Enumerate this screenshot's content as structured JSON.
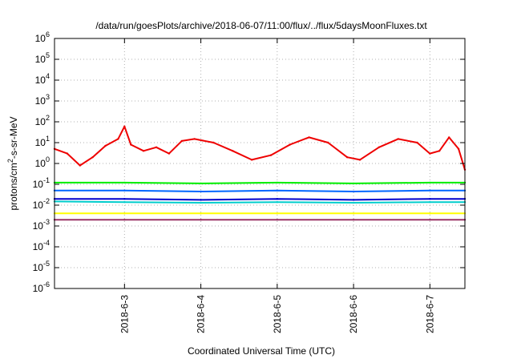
{
  "chart_data": {
    "type": "line",
    "title": "/data/run/goesPlots/archive/2018-06-07/11:00/flux/../flux/5daysMoonFluxes.txt",
    "xlabel": "Coordinated Universal Time (UTC)",
    "ylabel_parts": {
      "base": "protons/cm",
      "sup": "2",
      "rest": "-s-sr-MeV"
    },
    "y_scale": "log",
    "ylim": [
      1e-06,
      1000000.0
    ],
    "y_ticks": [
      {
        "base": "10",
        "exp": "6",
        "value": 1000000.0
      },
      {
        "base": "10",
        "exp": "5",
        "value": 100000.0
      },
      {
        "base": "10",
        "exp": "4",
        "value": 10000.0
      },
      {
        "base": "10",
        "exp": "3",
        "value": 1000.0
      },
      {
        "base": "10",
        "exp": "2",
        "value": 100.0
      },
      {
        "base": "10",
        "exp": "1",
        "value": 10.0
      },
      {
        "base": "10",
        "exp": "0",
        "value": 1.0
      },
      {
        "base": "10",
        "exp": "-1",
        "value": 0.1
      },
      {
        "base": "10",
        "exp": "-2",
        "value": 0.01
      },
      {
        "base": "10",
        "exp": "-3",
        "value": 0.001
      },
      {
        "base": "10",
        "exp": "-4",
        "value": 0.0001
      },
      {
        "base": "10",
        "exp": "-5",
        "value": 1e-05
      },
      {
        "base": "10",
        "exp": "-6",
        "value": 1e-06
      }
    ],
    "x_range": [
      "2018-06-02 02:00",
      "2018-06-07 11:00"
    ],
    "x_ticks": [
      {
        "label": "2018-6-3",
        "time": "2018-06-03 00:00"
      },
      {
        "label": "2018-6-4",
        "time": "2018-06-04 00:00"
      },
      {
        "label": "2018-6-5",
        "time": "2018-06-05 00:00"
      },
      {
        "label": "2018-6-6",
        "time": "2018-06-06 00:00"
      },
      {
        "label": "2018-6-7",
        "time": "2018-06-07 00:00"
      }
    ],
    "grid": true,
    "series": [
      {
        "color": "#ee0000",
        "x": [
          "2018-06-02 02:00",
          "2018-06-02 06:00",
          "2018-06-02 10:00",
          "2018-06-02 14:00",
          "2018-06-02 18:00",
          "2018-06-02 22:00",
          "2018-06-03 00:00",
          "2018-06-03 02:00",
          "2018-06-03 06:00",
          "2018-06-03 10:00",
          "2018-06-03 14:00",
          "2018-06-03 18:00",
          "2018-06-03 22:00",
          "2018-06-04 04:00",
          "2018-06-04 10:00",
          "2018-06-04 16:00",
          "2018-06-04 22:00",
          "2018-06-05 04:00",
          "2018-06-05 10:00",
          "2018-06-05 16:00",
          "2018-06-05 22:00",
          "2018-06-06 02:00",
          "2018-06-06 08:00",
          "2018-06-06 14:00",
          "2018-06-06 20:00",
          "2018-06-07 00:00",
          "2018-06-07 03:00",
          "2018-06-07 06:00",
          "2018-06-07 09:00",
          "2018-06-07 11:00"
        ],
        "values": [
          5,
          3,
          0.8,
          2,
          7,
          15,
          60,
          8,
          4,
          6,
          3,
          12,
          15,
          10,
          4,
          1.5,
          2.5,
          8,
          18,
          10,
          2,
          1.5,
          6,
          15,
          10,
          3,
          4,
          18,
          5,
          0.5
        ]
      },
      {
        "color": "#00ee00",
        "x": [
          "2018-06-02 02:00",
          "2018-06-03 00:00",
          "2018-06-04 00:00",
          "2018-06-05 00:00",
          "2018-06-06 00:00",
          "2018-06-07 00:00",
          "2018-06-07 11:00"
        ],
        "values": [
          0.12,
          0.12,
          0.11,
          0.12,
          0.11,
          0.12,
          0.12
        ]
      },
      {
        "color": "#0066ff",
        "x": [
          "2018-06-02 02:00",
          "2018-06-03 00:00",
          "2018-06-04 00:00",
          "2018-06-05 00:00",
          "2018-06-06 00:00",
          "2018-06-07 00:00",
          "2018-06-07 11:00"
        ],
        "values": [
          0.05,
          0.05,
          0.045,
          0.05,
          0.045,
          0.05,
          0.05
        ]
      },
      {
        "color": "#00cccc",
        "x": [
          "2018-06-02 02:00",
          "2018-06-03 00:00",
          "2018-06-04 00:00",
          "2018-06-05 00:00",
          "2018-06-06 00:00",
          "2018-06-07 00:00",
          "2018-06-07 11:00"
        ],
        "values": [
          0.015,
          0.014,
          0.013,
          0.014,
          0.013,
          0.014,
          0.014
        ]
      },
      {
        "color": "#0000cc",
        "x": [
          "2018-06-02 02:00",
          "2018-06-03 00:00",
          "2018-06-04 00:00",
          "2018-06-05 00:00",
          "2018-06-06 00:00",
          "2018-06-07 00:00",
          "2018-06-07 11:00"
        ],
        "values": [
          0.02,
          0.02,
          0.018,
          0.02,
          0.018,
          0.02,
          0.02
        ]
      },
      {
        "color": "#ffff00",
        "x": [
          "2018-06-02 02:00",
          "2018-06-03 00:00",
          "2018-06-04 00:00",
          "2018-06-05 00:00",
          "2018-06-06 00:00",
          "2018-06-07 00:00",
          "2018-06-07 11:00"
        ],
        "values": [
          0.004,
          0.004,
          0.004,
          0.004,
          0.004,
          0.004,
          0.004
        ]
      },
      {
        "color": "#993366",
        "x": [
          "2018-06-02 02:00",
          "2018-06-03 00:00",
          "2018-06-04 00:00",
          "2018-06-05 00:00",
          "2018-06-06 00:00",
          "2018-06-07 00:00",
          "2018-06-07 11:00"
        ],
        "values": [
          0.002,
          0.002,
          0.002,
          0.002,
          0.002,
          0.002,
          0.002
        ]
      }
    ]
  }
}
